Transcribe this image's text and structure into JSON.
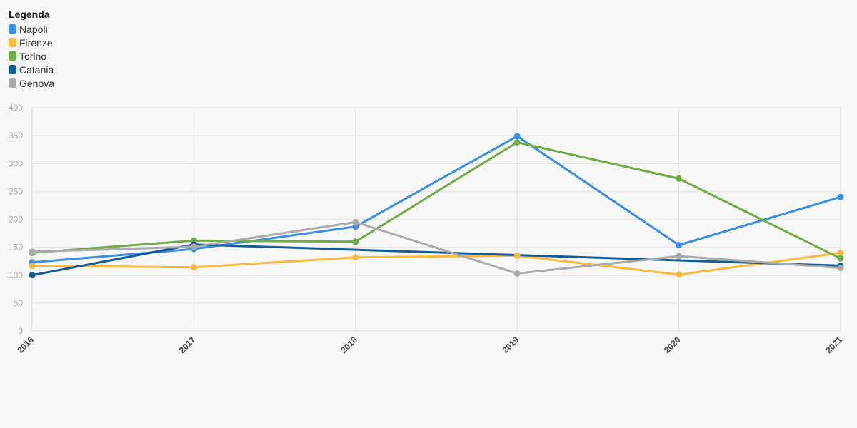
{
  "legend": {
    "title": "Legenda"
  },
  "chart_data": {
    "type": "line",
    "x": [
      "2016",
      "2017",
      "2018",
      "2019",
      "2020",
      "2021"
    ],
    "ylim": [
      0,
      400
    ],
    "yticks": [
      0,
      50,
      100,
      150,
      200,
      250,
      300,
      350,
      400
    ],
    "grid": true,
    "legend_position": "top-left",
    "series": [
      {
        "name": "Napoli",
        "color": "#3a8ee6",
        "values": [
          123,
          147,
          187,
          349,
          154,
          240
        ]
      },
      {
        "name": "Firenze",
        "color": "#fbb93d",
        "values": [
          117,
          114,
          132,
          135,
          101,
          140
        ]
      },
      {
        "name": "Torino",
        "color": "#6fac46",
        "values": [
          140,
          162,
          160,
          338,
          273,
          130
        ]
      },
      {
        "name": "Catania",
        "color": "#125d99",
        "values": [
          100,
          155,
          null,
          null,
          null,
          117
        ]
      },
      {
        "name": "Genova",
        "color": "#aaaaaa",
        "values": [
          142,
          151,
          195,
          103,
          134,
          113
        ]
      }
    ]
  }
}
